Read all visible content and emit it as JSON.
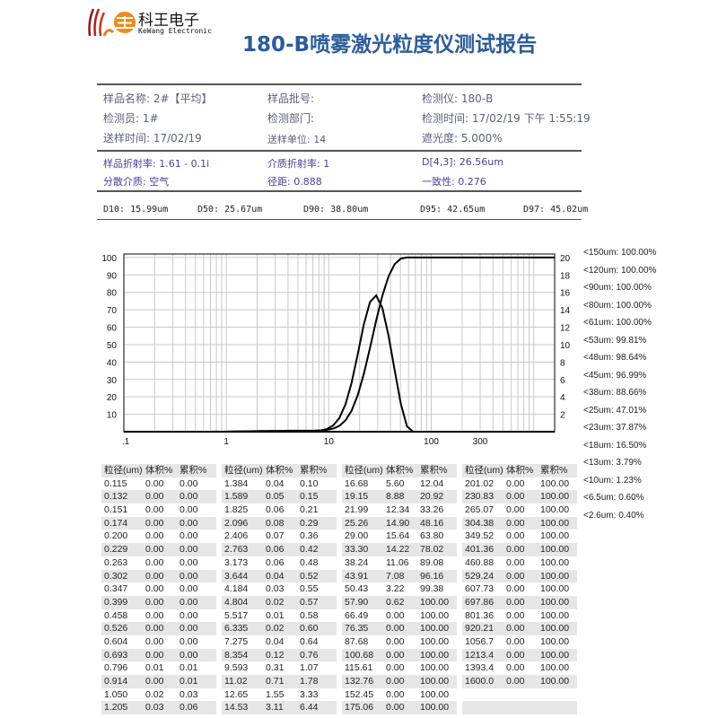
{
  "logo": {
    "cn": "科王电子",
    "en": "KeWang Electronic",
    "mark": "王"
  },
  "title": "180-B喷雾激光粒度仪测试报告",
  "info": [
    [
      "样品名称: 2#【平均】",
      "样品批号:",
      "检测仪:      180-B"
    ],
    [
      "检测员: 1#",
      "检测部门:",
      "检测时间: 17/02/19 下午 1:55:19"
    ],
    [
      "送样时间: 17/02/19",
      "送样单位: 14",
      "遮光度: 5.000%"
    ]
  ],
  "optics": [
    [
      "样品折射率: 1.61 - 0.1i",
      "介质折射率: 1",
      "D[4,3]: 26.56um"
    ],
    [
      "分散介质: 空气",
      "径距: 0.888",
      "一致性: 0.276"
    ]
  ],
  "d_values": [
    "D10: 15.99um",
    "D50: 25.67um",
    "D90: 38.80um",
    "D95: 42.65um",
    "D97: 45.02um"
  ],
  "legend": [
    "<150um: 100.00%",
    "<120um: 100.00%",
    "<90um: 100.00%",
    "<80um: 100.00%",
    "<61um: 100.00%",
    "<53um: 99.81%",
    "<48um: 98.64%",
    "<45um: 96.99%",
    "<38um: 88.66%",
    "<25um: 47.01%",
    "<23um: 37.87%",
    "<18um: 16.50%",
    "<13um: 3.79%",
    "<10um: 1.23%",
    "<6.5um: 0.60%",
    "<2.6um: 0.40%"
  ],
  "table_header": [
    "粒径(um)",
    "体积%",
    "累积%"
  ],
  "tables": [
    [
      [
        "0.115",
        "0.00",
        "0.00"
      ],
      [
        "0.132",
        "0.00",
        "0.00"
      ],
      [
        "0.151",
        "0.00",
        "0.00"
      ],
      [
        "0.174",
        "0.00",
        "0.00"
      ],
      [
        "0.200",
        "0.00",
        "0.00"
      ],
      [
        "0.229",
        "0.00",
        "0.00"
      ],
      [
        "0.263",
        "0.00",
        "0.00"
      ],
      [
        "0.302",
        "0.00",
        "0.00"
      ],
      [
        "0.347",
        "0.00",
        "0.00"
      ],
      [
        "0.399",
        "0.00",
        "0.00"
      ],
      [
        "0.458",
        "0.00",
        "0.00"
      ],
      [
        "0.526",
        "0.00",
        "0.00"
      ],
      [
        "0.604",
        "0.00",
        "0.00"
      ],
      [
        "0.693",
        "0.00",
        "0.00"
      ],
      [
        "0.796",
        "0.01",
        "0.01"
      ],
      [
        "0.914",
        "0.00",
        "0.01"
      ],
      [
        "1.050",
        "0.02",
        "0.03"
      ],
      [
        "1.205",
        "0.03",
        "0.06"
      ]
    ],
    [
      [
        "1.384",
        "0.04",
        "0.10"
      ],
      [
        "1.589",
        "0.05",
        "0.15"
      ],
      [
        "1.825",
        "0.06",
        "0.21"
      ],
      [
        "2.096",
        "0.08",
        "0.29"
      ],
      [
        "2.406",
        "0.07",
        "0.36"
      ],
      [
        "2.763",
        "0.06",
        "0.42"
      ],
      [
        "3.173",
        "0.06",
        "0.48"
      ],
      [
        "3.644",
        "0.04",
        "0.52"
      ],
      [
        "4.184",
        "0.03",
        "0.55"
      ],
      [
        "4.804",
        "0.02",
        "0.57"
      ],
      [
        "5.517",
        "0.01",
        "0.58"
      ],
      [
        "6.335",
        "0.02",
        "0.60"
      ],
      [
        "7.275",
        "0.04",
        "0.64"
      ],
      [
        "8.354",
        "0.12",
        "0.76"
      ],
      [
        "9.593",
        "0.31",
        "1.07"
      ],
      [
        "11.02",
        "0.71",
        "1.78"
      ],
      [
        "12.65",
        "1.55",
        "3.33"
      ],
      [
        "14.53",
        "3.11",
        "6.44"
      ]
    ],
    [
      [
        "16.68",
        "5.60",
        "12.04"
      ],
      [
        "19.15",
        "8.88",
        "20.92"
      ],
      [
        "21.99",
        "12.34",
        "33.26"
      ],
      [
        "25.26",
        "14.90",
        "48.16"
      ],
      [
        "29.00",
        "15.64",
        "63.80"
      ],
      [
        "33.30",
        "14.22",
        "78.02"
      ],
      [
        "38.24",
        "11.06",
        "89.08"
      ],
      [
        "43.91",
        "7.08",
        "96.16"
      ],
      [
        "50.43",
        "3.22",
        "99.38"
      ],
      [
        "57.90",
        "0.62",
        "100.00"
      ],
      [
        "66.49",
        "0.00",
        "100.00"
      ],
      [
        "76.35",
        "0.00",
        "100.00"
      ],
      [
        "87.68",
        "0.00",
        "100.00"
      ],
      [
        "100.68",
        "0.00",
        "100.00"
      ],
      [
        "115.61",
        "0.00",
        "100.00"
      ],
      [
        "132.76",
        "0.00",
        "100.00"
      ],
      [
        "152.45",
        "0.00",
        "100.00"
      ],
      [
        "175.06",
        "0.00",
        "100.00"
      ]
    ],
    [
      [
        "201.02",
        "0.00",
        "100.00"
      ],
      [
        "230.83",
        "0.00",
        "100.00"
      ],
      [
        "265.07",
        "0.00",
        "100.00"
      ],
      [
        "304.38",
        "0.00",
        "100.00"
      ],
      [
        "349.52",
        "0.00",
        "100.00"
      ],
      [
        "401.36",
        "0.00",
        "100.00"
      ],
      [
        "460.88",
        "0.00",
        "100.00"
      ],
      [
        "529.24",
        "0.00",
        "100.00"
      ],
      [
        "607.73",
        "0.00",
        "100.00"
      ],
      [
        "697.86",
        "0.00",
        "100.00"
      ],
      [
        "801.36",
        "0.00",
        "100.00"
      ],
      [
        "920.21",
        "0.00",
        "100.00"
      ],
      [
        "1056.7",
        "0.00",
        "100.00"
      ],
      [
        "1213.4",
        "0.00",
        "100.00"
      ],
      [
        "1393.4",
        "0.00",
        "100.00"
      ],
      [
        "1600.0",
        "0.00",
        "100.00"
      ],
      [
        "",
        "",
        " "
      ],
      [
        "",
        "",
        " "
      ]
    ]
  ],
  "chart_data": {
    "type": "line",
    "x_scale": "log",
    "xlim": [
      0.1,
      1600
    ],
    "x_ticks": [
      ".1",
      "1",
      "10",
      "100",
      "300"
    ],
    "y_left_ticks": [
      "10",
      "20",
      "30",
      "40",
      "50",
      "60",
      "70",
      "80",
      "90",
      "100"
    ],
    "y_right_ticks": [
      "2",
      "4",
      "6",
      "8",
      "10",
      "12",
      "14",
      "16",
      "18",
      "20"
    ],
    "ylim_left": [
      0,
      102
    ],
    "ylim_right": [
      0,
      20.4
    ],
    "grid": true,
    "colors": {
      "line": "#000000",
      "grid": "#c8c8c8"
    },
    "series": [
      {
        "axis": "right",
        "source": "tables",
        "column": 1
      },
      {
        "axis": "left",
        "source": "tables",
        "column": 2
      }
    ]
  }
}
